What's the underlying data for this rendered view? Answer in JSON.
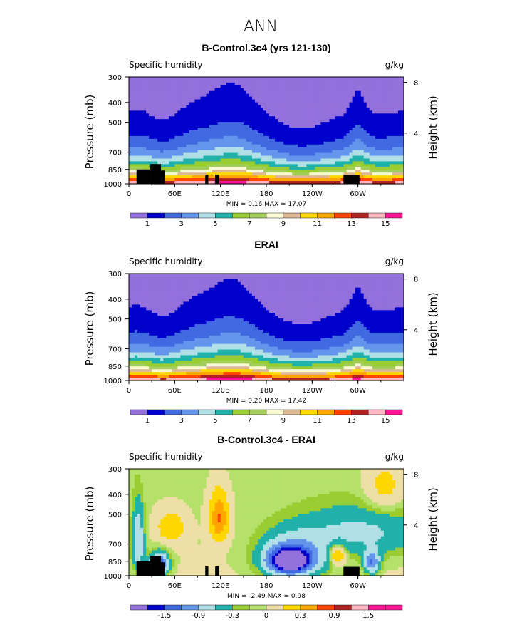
{
  "figure_title": "ANN",
  "chart_data": [
    {
      "type": "heatmap",
      "title": "B-Control.3c4 (yrs 121-130)",
      "field_label": "Specific humidity",
      "units": "g/kg",
      "ylabel": "Pressure (mb)",
      "ylabel_right": "Height (km)",
      "pressure_ticks": [
        "300",
        "400",
        "500",
        "700",
        "850",
        "1000"
      ],
      "height_ticks": [
        "8",
        "4"
      ],
      "longitude_ticks": [
        "0",
        "60E",
        "120E",
        "180",
        "120W",
        "60W"
      ],
      "stats_text": "MIN =    0.16   MAX =   17.07",
      "min": 0.16,
      "max": 17.07,
      "colorbar_labels": [
        "1",
        "3",
        "5",
        "7",
        "9",
        "11",
        "13",
        "15"
      ],
      "levels": [
        0,
        1,
        2,
        3,
        4,
        5,
        6,
        7,
        8,
        9,
        10,
        11,
        12,
        13,
        14,
        15,
        16
      ]
    },
    {
      "type": "heatmap",
      "title": "ERAI",
      "field_label": "Specific humidity",
      "units": "g/kg",
      "ylabel": "Pressure (mb)",
      "ylabel_right": "Height (km)",
      "pressure_ticks": [
        "300",
        "400",
        "500",
        "700",
        "850",
        "1000"
      ],
      "height_ticks": [
        "8",
        "4"
      ],
      "longitude_ticks": [
        "0",
        "60E",
        "120E",
        "180",
        "120W",
        "60W"
      ],
      "stats_text": "MIN =    0.20   MAX =   17.42",
      "min": 0.2,
      "max": 17.42,
      "colorbar_labels": [
        "1",
        "3",
        "5",
        "7",
        "9",
        "11",
        "13",
        "15"
      ],
      "levels": [
        0,
        1,
        2,
        3,
        4,
        5,
        6,
        7,
        8,
        9,
        10,
        11,
        12,
        13,
        14,
        15,
        16
      ]
    },
    {
      "type": "heatmap",
      "title": "B-Control.3c4 - ERAI",
      "field_label": "Specific humidity",
      "units": "g/kg",
      "ylabel": "Pressure (mb)",
      "ylabel_right": "Height (km)",
      "pressure_ticks": [
        "300",
        "400",
        "500",
        "700",
        "850",
        "1000"
      ],
      "height_ticks": [
        "8",
        "4"
      ],
      "longitude_ticks": [
        "0",
        "60E",
        "120E",
        "180",
        "120W",
        "60W"
      ],
      "stats_text": "MIN =   -2.49   MAX =    0.98",
      "min": -2.49,
      "max": 0.98,
      "colorbar_labels": [
        "-1.5",
        "-0.9",
        "-0.3",
        "0",
        "0.3",
        "0.9",
        "1.5"
      ],
      "levels": [
        -1.8,
        -1.5,
        -1.2,
        -0.9,
        -0.6,
        -0.3,
        -0.1,
        0,
        0.1,
        0.3,
        0.6,
        0.9,
        1.2,
        1.5,
        1.8
      ]
    }
  ],
  "palette_abs": [
    "#9370db",
    "#0000cd",
    "#4169e1",
    "#6495ed",
    "#b0e0e6",
    "#20b2aa",
    "#9acd32",
    "#a2cd5a",
    "#fafad2",
    "#ddb892",
    "#ffd700",
    "#ffa500",
    "#ff4500",
    "#b22222",
    "#ffb6c1",
    "#ff1493"
  ],
  "palette_diff": [
    "#9370db",
    "#0000cd",
    "#4169e1",
    "#6495ed",
    "#b0e0e6",
    "#20b2aa",
    "#9acd32",
    "#b5e16a",
    "#eedfa6",
    "#ffd700",
    "#ffa500",
    "#ff4500",
    "#b22222",
    "#ffb6c1",
    "#ff1493",
    "#ff1493"
  ]
}
